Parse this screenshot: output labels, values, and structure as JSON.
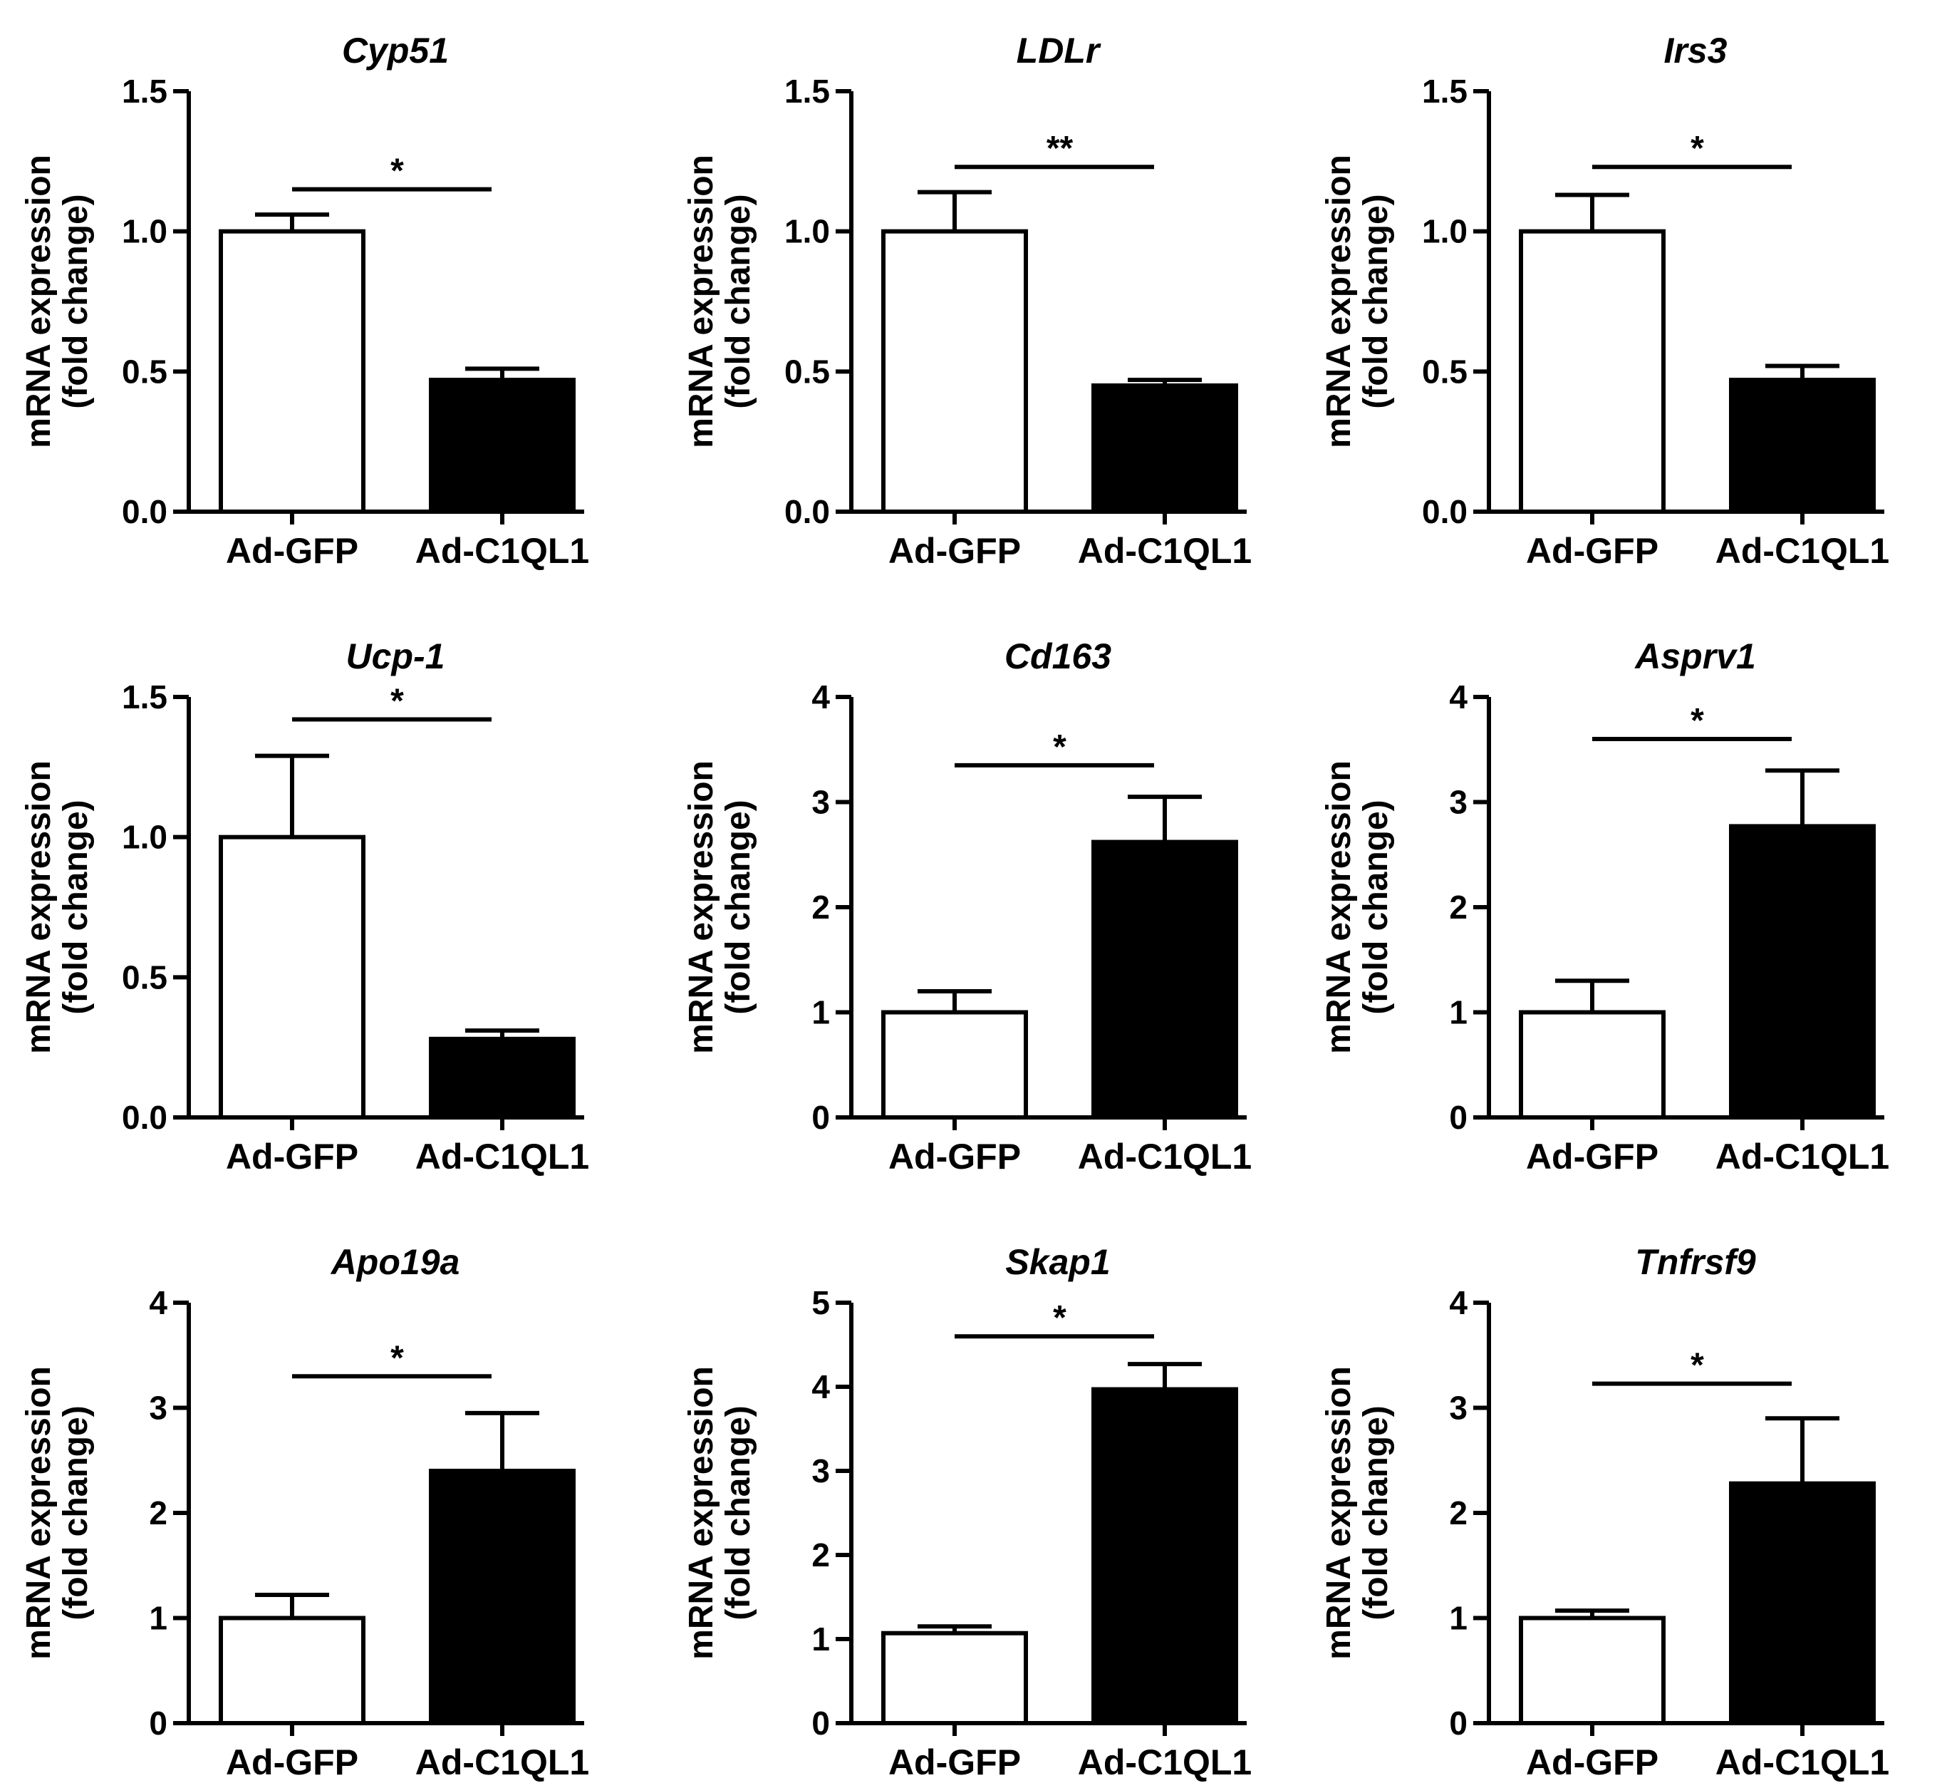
{
  "figure": {
    "categories": [
      "Ad-GFP",
      "Ad-C1QL1"
    ],
    "ylabel_line1": "mRNA expression",
    "ylabel_line2": "(fold change)",
    "colors": {
      "Ad-GFP": "#ffffff",
      "Ad-C1QL1": "#000000",
      "axis": "#000000"
    }
  },
  "chart_data": [
    {
      "type": "bar",
      "title": "Cyp51",
      "categories": [
        "Ad-GFP",
        "Ad-C1QL1"
      ],
      "values": [
        1.0,
        0.47
      ],
      "errors": [
        0.06,
        0.04
      ],
      "ylim": [
        0,
        1.5
      ],
      "yticks": [
        0,
        0.5,
        1.0,
        1.5
      ],
      "ytick_labels": [
        "0.0",
        "0.5",
        "1.0",
        "1.5"
      ],
      "significance": "*",
      "sig_level": 1.15,
      "ylabel": "mRNA expression (fold change)",
      "xlabel": ""
    },
    {
      "type": "bar",
      "title": "LDLr",
      "categories": [
        "Ad-GFP",
        "Ad-C1QL1"
      ],
      "values": [
        1.0,
        0.45
      ],
      "errors": [
        0.14,
        0.02
      ],
      "ylim": [
        0,
        1.5
      ],
      "yticks": [
        0,
        0.5,
        1.0,
        1.5
      ],
      "ytick_labels": [
        "0.0",
        "0.5",
        "1.0",
        "1.5"
      ],
      "significance": "**",
      "sig_level": 1.23,
      "ylabel": "mRNA expression (fold change)",
      "xlabel": ""
    },
    {
      "type": "bar",
      "title": "Irs3",
      "categories": [
        "Ad-GFP",
        "Ad-C1QL1"
      ],
      "values": [
        1.0,
        0.47
      ],
      "errors": [
        0.13,
        0.05
      ],
      "ylim": [
        0,
        1.5
      ],
      "yticks": [
        0,
        0.5,
        1.0,
        1.5
      ],
      "ytick_labels": [
        "0.0",
        "0.5",
        "1.0",
        "1.5"
      ],
      "significance": "*",
      "sig_level": 1.23,
      "ylabel": "mRNA expression (fold change)",
      "xlabel": ""
    },
    {
      "type": "bar",
      "title": "Ucp-1",
      "categories": [
        "Ad-GFP",
        "Ad-C1QL1"
      ],
      "values": [
        1.0,
        0.28
      ],
      "errors": [
        0.29,
        0.03
      ],
      "ylim": [
        0,
        1.5
      ],
      "yticks": [
        0,
        0.5,
        1.0,
        1.5
      ],
      "ytick_labels": [
        "0.0",
        "0.5",
        "1.0",
        "1.5"
      ],
      "significance": "*",
      "sig_level": 1.42,
      "ylabel": "mRNA expression (fold change)",
      "xlabel": ""
    },
    {
      "type": "bar",
      "title": "Cd163",
      "categories": [
        "Ad-GFP",
        "Ad-C1QL1"
      ],
      "values": [
        1.0,
        2.62
      ],
      "errors": [
        0.2,
        0.43
      ],
      "ylim": [
        0,
        4
      ],
      "yticks": [
        0,
        1,
        2,
        3,
        4
      ],
      "ytick_labels": [
        "0",
        "1",
        "2",
        "3",
        "4"
      ],
      "significance": "*",
      "sig_level": 3.35,
      "ylabel": "mRNA expression (fold change)",
      "xlabel": ""
    },
    {
      "type": "bar",
      "title": "Asprv1",
      "categories": [
        "Ad-GFP",
        "Ad-C1QL1"
      ],
      "values": [
        1.0,
        2.77
      ],
      "errors": [
        0.3,
        0.53
      ],
      "ylim": [
        0,
        4
      ],
      "yticks": [
        0,
        1,
        2,
        3,
        4
      ],
      "ytick_labels": [
        "0",
        "1",
        "2",
        "3",
        "4"
      ],
      "significance": "*",
      "sig_level": 3.6,
      "ylabel": "mRNA expression (fold change)",
      "xlabel": ""
    },
    {
      "type": "bar",
      "title": "Apo19a",
      "categories": [
        "Ad-GFP",
        "Ad-C1QL1"
      ],
      "values": [
        1.0,
        2.4
      ],
      "errors": [
        0.22,
        0.55
      ],
      "ylim": [
        0,
        4
      ],
      "yticks": [
        0,
        1,
        2,
        3,
        4
      ],
      "ytick_labels": [
        "0",
        "1",
        "2",
        "3",
        "4"
      ],
      "significance": "*",
      "sig_level": 3.3,
      "ylabel": "mRNA expression (fold change)",
      "xlabel": ""
    },
    {
      "type": "bar",
      "title": "Skap1",
      "categories": [
        "Ad-GFP",
        "Ad-C1QL1"
      ],
      "values": [
        1.07,
        3.97
      ],
      "errors": [
        0.08,
        0.3
      ],
      "ylim": [
        0,
        5
      ],
      "yticks": [
        0,
        1,
        2,
        3,
        4,
        5
      ],
      "ytick_labels": [
        "0",
        "1",
        "2",
        "3",
        "4",
        "5"
      ],
      "significance": "*",
      "sig_level": 4.6,
      "ylabel": "mRNA expression (fold change)",
      "xlabel": ""
    },
    {
      "type": "bar",
      "title": "Tnfrsf9",
      "categories": [
        "Ad-GFP",
        "Ad-C1QL1"
      ],
      "values": [
        1.0,
        2.28
      ],
      "errors": [
        0.07,
        0.62
      ],
      "ylim": [
        0,
        4
      ],
      "yticks": [
        0,
        1,
        2,
        3,
        4
      ],
      "ytick_labels": [
        "0",
        "1",
        "2",
        "3",
        "4"
      ],
      "significance": "*",
      "sig_level": 3.23,
      "ylabel": "mRNA expression (fold change)",
      "xlabel": ""
    }
  ]
}
